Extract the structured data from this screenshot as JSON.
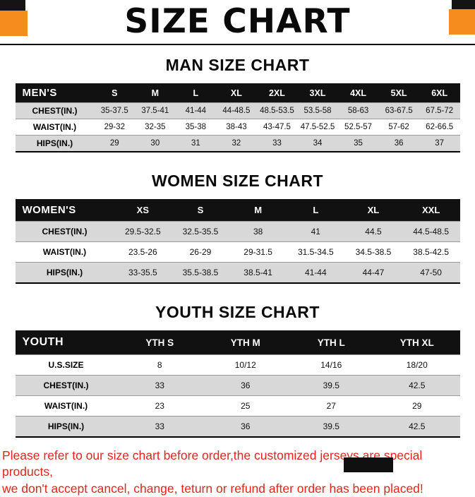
{
  "page": {
    "title": "SIZE CHART",
    "footer_line1": "Please refer to our size chart before order,the customized jerseys are special products,",
    "footer_line2": "we don't accept cancel, change, teturn or refund after order has been placed!"
  },
  "colors": {
    "accent_orange": "#f68c1e",
    "footer_red": "#e4251b",
    "table_header_bg": "#111111",
    "shaded_row": "#d8d8d8"
  },
  "sections": [
    {
      "heading": "MAN SIZE CHART",
      "header": [
        "MEN'S",
        "S",
        "M",
        "L",
        "XL",
        "2XL",
        "3XL",
        "4XL",
        "5XL",
        "6XL"
      ],
      "rows": [
        {
          "label": "CHEST(IN.)",
          "values": [
            "35-37.5",
            "37.5-41",
            "41-44",
            "44-48.5",
            "48.5-53.5",
            "53.5-58",
            "58-63",
            "63-67.5",
            "67.5-72"
          ]
        },
        {
          "label": "WAIST(IN.)",
          "values": [
            "29-32",
            "32-35",
            "35-38",
            "38-43",
            "43-47.5",
            "47.5-52.5",
            "52.5-57",
            "57-62",
            "62-66.5"
          ]
        },
        {
          "label": "HIPS(IN.)",
          "values": [
            "29",
            "30",
            "31",
            "32",
            "33",
            "34",
            "35",
            "36",
            "37"
          ]
        }
      ]
    },
    {
      "heading": "WOMEN SIZE CHART",
      "header": [
        "WOMEN'S",
        "XS",
        "S",
        "M",
        "L",
        "XL",
        "XXL"
      ],
      "rows": [
        {
          "label": "CHEST(IN.)",
          "values": [
            "29.5-32.5",
            "32.5-35.5",
            "38",
            "41",
            "44.5",
            "44.5-48.5"
          ]
        },
        {
          "label": "WAIST(IN.)",
          "values": [
            "23.5-26",
            "26-29",
            "29-31.5",
            "31.5-34.5",
            "34.5-38.5",
            "38.5-42.5"
          ]
        },
        {
          "label": "HIPS(IN.)",
          "values": [
            "33-35.5",
            "35.5-38.5",
            "38.5-41",
            "41-44",
            "44-47",
            "47-50"
          ]
        }
      ]
    },
    {
      "heading": "YOUTH SIZE CHART",
      "header": [
        "YOUTH",
        "YTH S",
        "YTH M",
        "YTH L",
        "YTH XL"
      ],
      "rows": [
        {
          "label": "U.S.SIZE",
          "values": [
            "8",
            "10/12",
            "14/16",
            "18/20"
          ]
        },
        {
          "label": "CHEST(IN.)",
          "values": [
            "33",
            "36",
            "39.5",
            "42.5"
          ]
        },
        {
          "label": "WAIST(IN.)",
          "values": [
            "23",
            "25",
            "27",
            "29"
          ]
        },
        {
          "label": "HIPS(IN.)",
          "values": [
            "33",
            "36",
            "39.5",
            "42.5"
          ]
        }
      ]
    }
  ]
}
